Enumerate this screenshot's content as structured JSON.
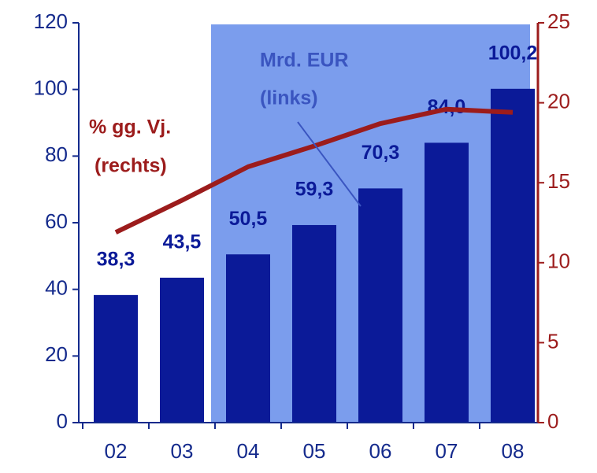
{
  "chart_data": {
    "type": "bar",
    "categories": [
      "02",
      "03",
      "04",
      "05",
      "06",
      "07",
      "08"
    ],
    "series": [
      {
        "name": "Mrd. EUR (links)",
        "type": "bar",
        "color": "#0b1a98",
        "values": [
          38.3,
          43.5,
          50.5,
          59.3,
          70.3,
          84.0,
          100.2
        ],
        "value_labels": [
          "38,3",
          "43,5",
          "50,5",
          "59,3",
          "70,3",
          "84,0",
          "100,2"
        ]
      },
      {
        "name": "% gg. Vj. (rechts)",
        "type": "line",
        "axis": "y2",
        "color": "#9c1c1c",
        "values": [
          11.9,
          13.9,
          16.0,
          17.3,
          18.7,
          19.6,
          19.4
        ]
      }
    ],
    "annotations": [
      "% gg. Vj.",
      "(rechts)",
      "Mrd. EUR",
      "(links)"
    ],
    "ylim": [
      0,
      120
    ],
    "yticks": [
      0,
      20,
      40,
      60,
      80,
      100,
      120
    ],
    "y2lim": [
      0,
      25
    ],
    "y2ticks": [
      0,
      5,
      10,
      15,
      20,
      25
    ]
  }
}
